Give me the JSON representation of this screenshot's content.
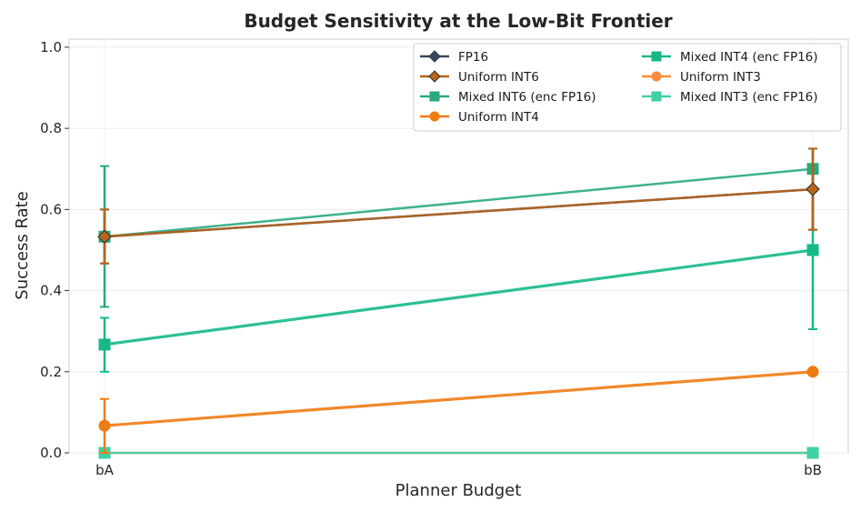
{
  "chart_data": {
    "type": "line",
    "title": "Budget Sensitivity at the Low-Bit Frontier",
    "xlabel": "Planner Budget",
    "ylabel": "Success Rate",
    "categories": [
      "bA",
      "bB"
    ],
    "ylim": [
      0.0,
      1.02
    ],
    "yticks": [
      0.0,
      0.2,
      0.4,
      0.6,
      0.8,
      1.0
    ],
    "ytick_labels": [
      "0.0",
      "0.2",
      "0.4",
      "0.6",
      "0.8",
      "1.0"
    ],
    "grid": true,
    "legend_position": "top-right",
    "series": [
      {
        "name": "FP16",
        "color": "#34495e",
        "marker": "diamond",
        "values": [
          0.533,
          0.65
        ],
        "err_low": [
          0.467,
          0.55
        ],
        "err_high": [
          0.6,
          0.75
        ]
      },
      {
        "name": "Uniform INT6",
        "color": "#b5651d",
        "marker": "diamond",
        "values": [
          0.533,
          0.65
        ],
        "err_low": [
          0.467,
          0.55
        ],
        "err_high": [
          0.6,
          0.75
        ]
      },
      {
        "name": "Mixed INT6 (enc FP16)",
        "color": "#2aa87e",
        "marker": "square",
        "values": [
          0.533,
          0.7
        ],
        "err_low": [
          0.36,
          0.7
        ],
        "err_high": [
          0.707,
          0.7
        ]
      },
      {
        "name": "Uniform INT4",
        "color": "#f07b12",
        "marker": "circle",
        "values": [
          0.067,
          0.2
        ],
        "err_low": [
          0.0,
          0.2
        ],
        "err_high": [
          0.133,
          0.2
        ]
      },
      {
        "name": "Mixed INT4 (enc FP16)",
        "color": "#16b889",
        "marker": "square",
        "values": [
          0.267,
          0.5
        ],
        "err_low": [
          0.2,
          0.305
        ],
        "err_high": [
          0.333,
          0.695
        ]
      },
      {
        "name": "Uniform INT3",
        "color": "#ff8c3a",
        "marker": "circle",
        "values": [
          0.0,
          0.0
        ],
        "err_low": [
          0.0,
          0.0
        ],
        "err_high": [
          0.0,
          0.0
        ]
      },
      {
        "name": "Mixed INT3 (enc FP16)",
        "color": "#3fd1a3",
        "marker": "square",
        "values": [
          0.0,
          0.0
        ],
        "err_low": [
          0.0,
          0.0
        ],
        "err_high": [
          0.0,
          0.0
        ]
      }
    ]
  }
}
